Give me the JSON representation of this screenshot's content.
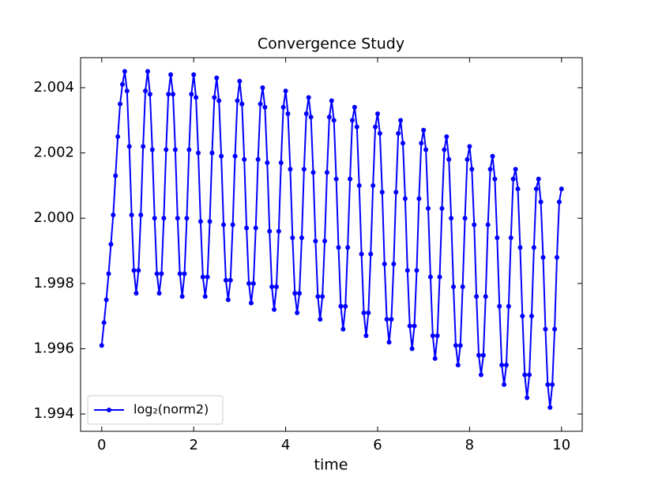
{
  "chart_data": {
    "type": "line",
    "title": "Convergence Study",
    "x_label": "time",
    "xlim": [
      -0.46,
      10.45
    ],
    "ylim": [
      1.99347,
      2.00492
    ],
    "xticks": [
      0,
      2,
      4,
      6,
      8,
      10
    ],
    "yticks": [
      1.994,
      1.996,
      1.998,
      {
        "value": 2,
        "label": "2.000"
      },
      2.002,
      2.004
    ],
    "legend": "lower left",
    "x": [
      0,
      0.05,
      0.1,
      0.15,
      0.2,
      0.25,
      0.3,
      0.35,
      0.4,
      0.45,
      0.5,
      0.55,
      0.6,
      0.65,
      0.7,
      0.75,
      0.8,
      0.85,
      0.9,
      0.95,
      1,
      1.05,
      1.1,
      1.15,
      1.2,
      1.25,
      1.3,
      1.35,
      1.4,
      1.45,
      1.5,
      1.55,
      1.6,
      1.65,
      1.7,
      1.75,
      1.8,
      1.85,
      1.9,
      1.95,
      2,
      2.05,
      2.1,
      2.15,
      2.2,
      2.25,
      2.3,
      2.35,
      2.4,
      2.45,
      2.5,
      2.55,
      2.6,
      2.65,
      2.7,
      2.75,
      2.8,
      2.85,
      2.9,
      2.95,
      3,
      3.05,
      3.1,
      3.15,
      3.2,
      3.25,
      3.3,
      3.35,
      3.4,
      3.45,
      3.5,
      3.55,
      3.6,
      3.65,
      3.7,
      3.75,
      3.8,
      3.85,
      3.9,
      3.95,
      4,
      4.05,
      4.1,
      4.15,
      4.2,
      4.25,
      4.3,
      4.35,
      4.4,
      4.45,
      4.5,
      4.55,
      4.6,
      4.65,
      4.7,
      4.75,
      4.8,
      4.85,
      4.9,
      4.95,
      5,
      5.05,
      5.1,
      5.15,
      5.2,
      5.25,
      5.3,
      5.35,
      5.4,
      5.45,
      5.5,
      5.55,
      5.6,
      5.65,
      5.7,
      5.75,
      5.8,
      5.85,
      5.9,
      5.95,
      6,
      6.05,
      6.1,
      6.15,
      6.2,
      6.25,
      6.3,
      6.35,
      6.4,
      6.45,
      6.5,
      6.55,
      6.6,
      6.65,
      6.7,
      6.75,
      6.8,
      6.85,
      6.9,
      6.95,
      7,
      7.05,
      7.1,
      7.15,
      7.2,
      7.25,
      7.3,
      7.35,
      7.4,
      7.45,
      7.5,
      7.55,
      7.6,
      7.65,
      7.7,
      7.75,
      7.8,
      7.85,
      7.9,
      7.95,
      8,
      8.05,
      8.1,
      8.15,
      8.2,
      8.25,
      8.3,
      8.35,
      8.4,
      8.45,
      8.5,
      8.55,
      8.6,
      8.65,
      8.7,
      8.75,
      8.8,
      8.85,
      8.9,
      8.95,
      9,
      9.05,
      9.1,
      9.15,
      9.2,
      9.25,
      9.3,
      9.35,
      9.4,
      9.45,
      9.5,
      9.55,
      9.6,
      9.65,
      9.7,
      9.75,
      9.8,
      9.85,
      9.9,
      9.95,
      10
    ],
    "series": [
      {
        "name": "log₂(norm2)",
        "color": "#0000ff",
        "values": [
          1.9961,
          1.9968,
          1.9975,
          1.9983,
          1.9992,
          2.0001,
          2.0013,
          2.0025,
          2.0035,
          2.0041,
          2.0045,
          2.0039,
          2.0022,
          2.0001,
          1.9984,
          1.9977,
          1.9984,
          2.0001,
          2.0022,
          2.0039,
          2.0045,
          2.0038,
          2.0021,
          2.0,
          1.9983,
          1.9977,
          1.9983,
          2.0,
          2.0021,
          2.0038,
          2.0044,
          2.0038,
          2.0021,
          2.0,
          1.9983,
          1.9976,
          1.9983,
          2.0,
          2.0021,
          2.0038,
          2.0044,
          2.0037,
          2.002,
          1.9999,
          1.9982,
          1.9976,
          1.9982,
          1.9999,
          2.002,
          2.0037,
          2.0043,
          2.0036,
          2.0019,
          1.9998,
          1.9981,
          1.9975,
          1.9981,
          1.9998,
          2.0019,
          2.0036,
          2.0042,
          2.0035,
          2.0018,
          1.9997,
          1.998,
          1.9974,
          1.998,
          1.9997,
          2.0018,
          2.0035,
          2.004,
          2.0034,
          2.0017,
          1.9996,
          1.9979,
          1.9972,
          1.9979,
          1.9996,
          2.0017,
          2.0034,
          2.0039,
          2.0032,
          2.0015,
          1.9994,
          1.9977,
          1.9971,
          1.9977,
          1.9994,
          2.0015,
          2.0032,
          2.0037,
          2.0031,
          2.0014,
          1.9993,
          1.9976,
          1.9969,
          1.9976,
          1.9993,
          2.0014,
          2.0031,
          2.0036,
          2.003,
          2.0012,
          1.9991,
          1.9973,
          1.9966,
          1.9973,
          1.9991,
          2.0012,
          2.003,
          2.0034,
          2.0028,
          2.001,
          1.9989,
          1.9971,
          1.9964,
          1.9971,
          1.9989,
          2.001,
          2.0028,
          2.0032,
          2.0026,
          2.0008,
          1.9986,
          1.9969,
          1.9962,
          1.9969,
          1.9986,
          2.0008,
          2.0026,
          2.003,
          2.0023,
          2.0006,
          1.9984,
          1.9967,
          1.996,
          1.9967,
          1.9984,
          2.0006,
          2.0023,
          2.0027,
          2.0021,
          2.0003,
          1.9982,
          1.9964,
          1.9957,
          1.9964,
          1.9982,
          2.0003,
          2.0021,
          2.0025,
          2.0018,
          2.0,
          1.9979,
          1.9961,
          1.9955,
          1.9961,
          1.9979,
          2.0,
          2.0018,
          2.0022,
          2.0015,
          1.9998,
          1.9976,
          1.9958,
          1.9952,
          1.9958,
          1.9976,
          1.9998,
          2.0015,
          2.0019,
          2.0012,
          1.9994,
          1.9973,
          1.9955,
          1.9949,
          1.9955,
          1.9973,
          1.9994,
          2.0012,
          2.0015,
          2.0009,
          1.9991,
          1.997,
          1.9952,
          1.9945,
          1.9952,
          1.997,
          1.9991,
          2.0009,
          2.0012,
          2.0005,
          1.9988,
          1.9966,
          1.9949,
          1.9942,
          1.9949,
          1.9966,
          1.9988,
          2.0005,
          2.0009
        ]
      }
    ]
  }
}
